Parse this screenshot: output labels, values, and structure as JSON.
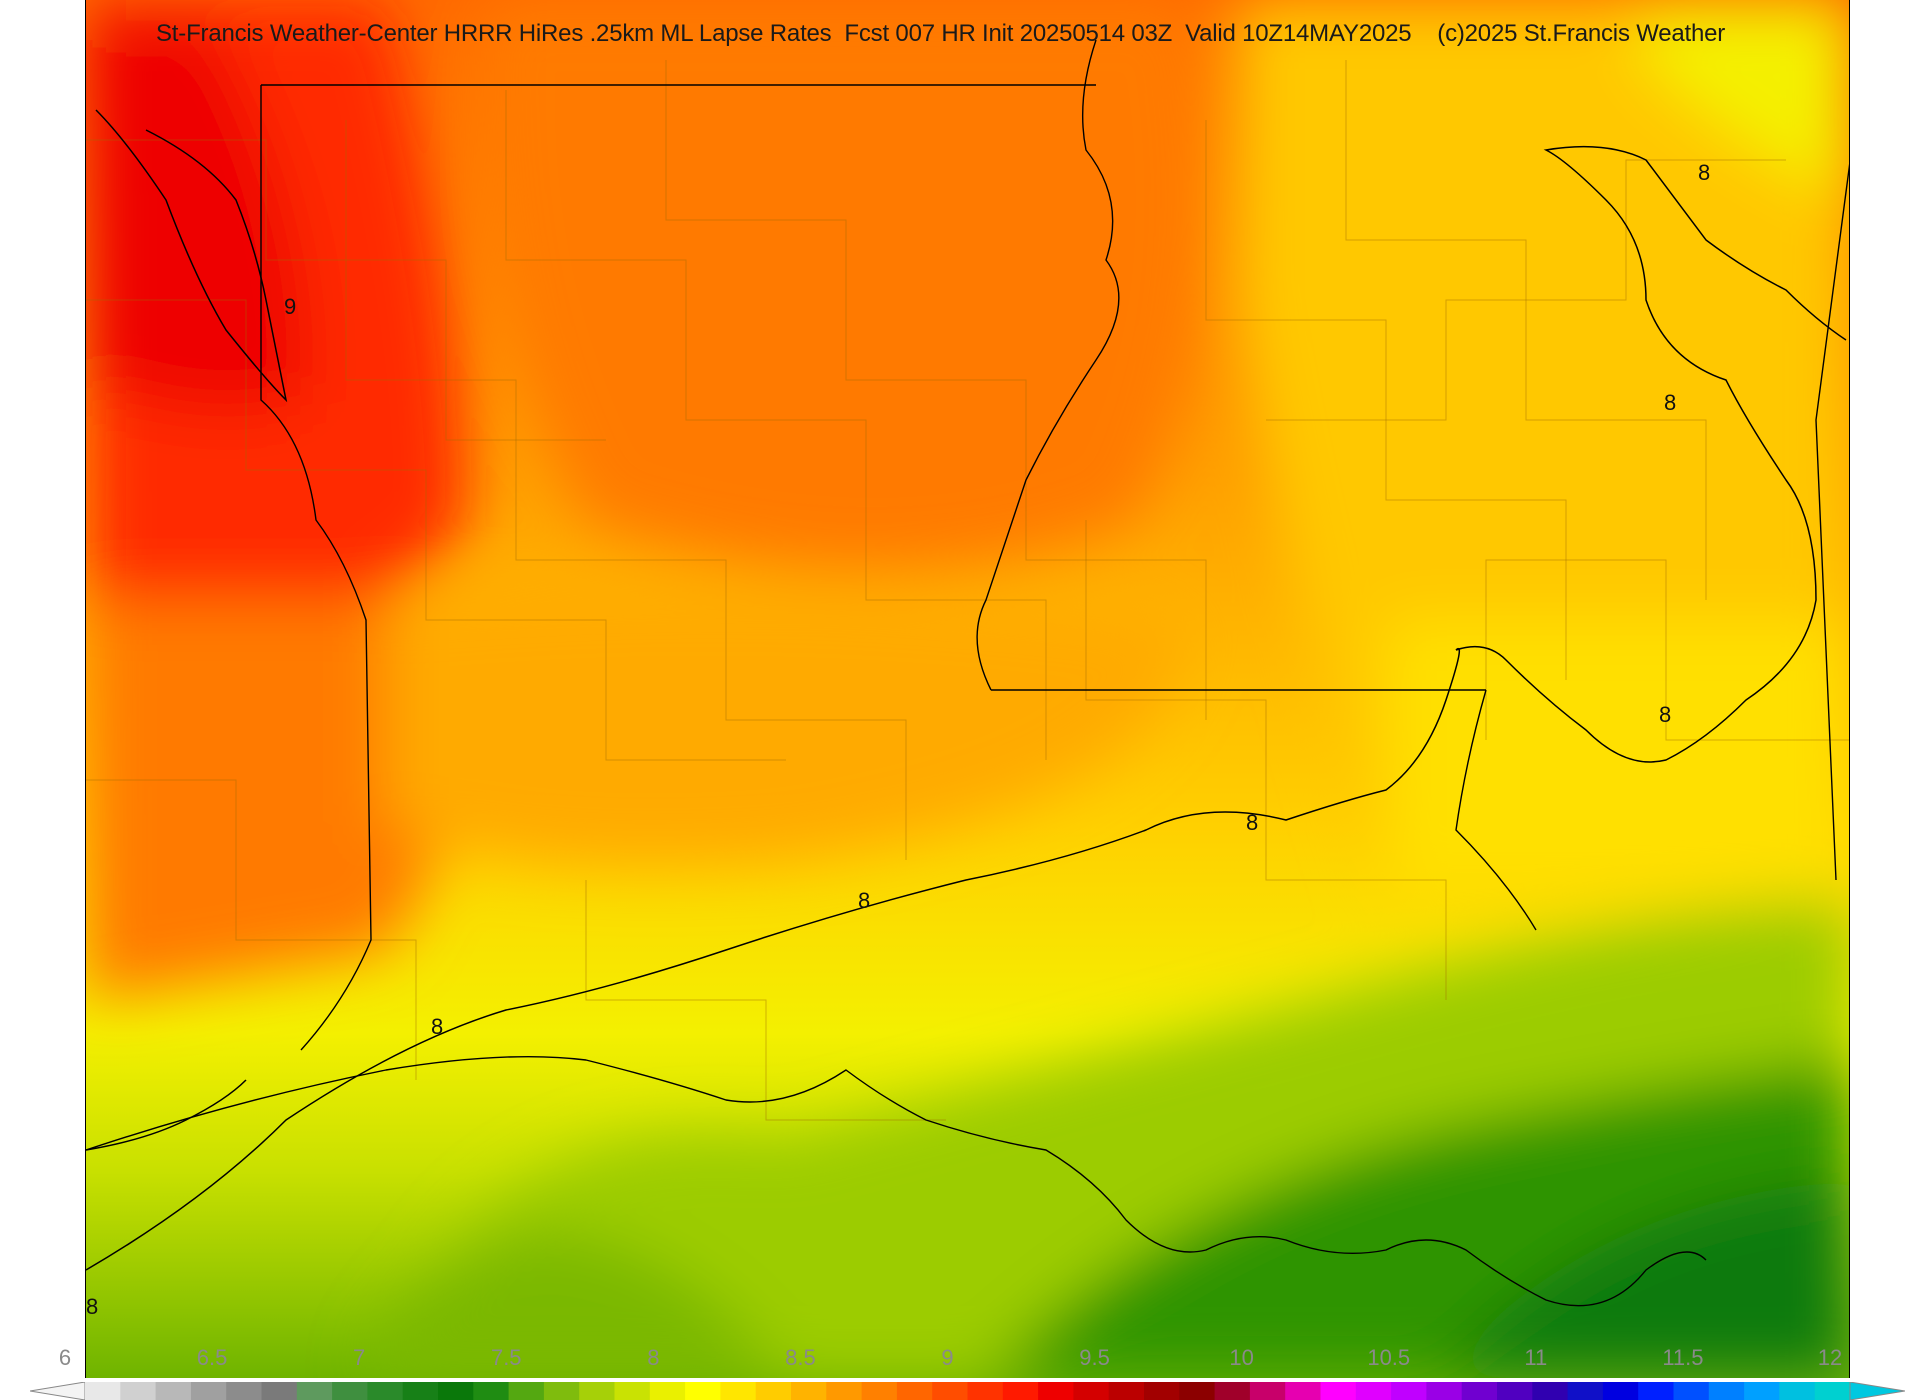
{
  "title": "St-Francis Weather-Center HRRR HiRes .25km ML Lapse Rates  Fcst 007 HR Init 20250514 03Z  Valid 10Z14MAY2025    (c)2025 St.Francis Weather",
  "contour_value": "8",
  "contour_value_9": "9",
  "colorbar": {
    "min": 6,
    "max": 12,
    "ticks": [
      "6",
      "6.5",
      "7",
      "7.5",
      "8",
      "8.5",
      "9",
      "9.5",
      "10",
      "10.5",
      "11",
      "11.5",
      "12"
    ],
    "colors": [
      "#e8e8e8",
      "#d0d0d0",
      "#b8b8b8",
      "#a0a0a0",
      "#8c8c8c",
      "#7a7a7a",
      "#5e9a5e",
      "#3f8f3f",
      "#2a8a2a",
      "#178017",
      "#0a780a",
      "#1f8c12",
      "#54a811",
      "#7fbc0d",
      "#a6d008",
      "#c9e203",
      "#eaf000",
      "#ffff00",
      "#ffe600",
      "#ffcc00",
      "#ffb300",
      "#ff9900",
      "#ff8000",
      "#ff6600",
      "#ff4d00",
      "#ff3300",
      "#ff1a00",
      "#ee0000",
      "#d40000",
      "#bb0000",
      "#a20000",
      "#8c0000",
      "#a0002a",
      "#c8006a",
      "#e600b0",
      "#ff00ff",
      "#e000ff",
      "#c000ff",
      "#9a00e6",
      "#7000d0",
      "#5000c0",
      "#3000b0",
      "#1010c8",
      "#0000e0",
      "#0020ff",
      "#0050ff",
      "#0080ff",
      "#00a0ff",
      "#00c0e0",
      "#00d0d0"
    ]
  }
}
